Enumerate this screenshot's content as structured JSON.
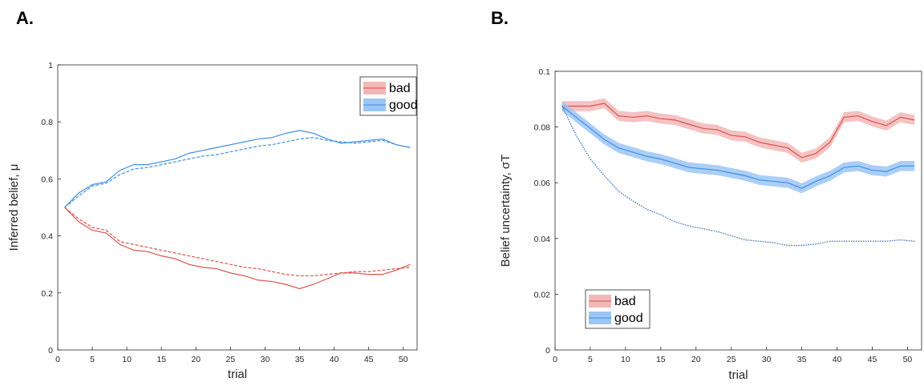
{
  "panels": [
    {
      "label": "A."
    },
    {
      "label": "B."
    }
  ],
  "colors": {
    "bad": "#d9534f",
    "good": "#3f8fe0",
    "bad_band": "#f2b7b7",
    "good_band": "#9cc6f5"
  },
  "chart_data": [
    {
      "type": "line",
      "title": "",
      "xlabel": "trial",
      "ylabel": "Inferred belief, μ",
      "xlim": [
        0,
        52
      ],
      "ylim": [
        0,
        1
      ],
      "xticks": [
        0,
        5,
        10,
        15,
        20,
        25,
        30,
        35,
        40,
        45,
        50
      ],
      "yticks": [
        0,
        0.2,
        0.4,
        0.6,
        0.8,
        1
      ],
      "ytick_labels": [
        "0",
        "0.2",
        "0.4",
        "0.6",
        "0.8",
        "1"
      ],
      "legend": {
        "position": "top-right",
        "entries": [
          "bad",
          "good"
        ]
      },
      "x": [
        1,
        3,
        5,
        7,
        9,
        11,
        13,
        15,
        17,
        19,
        21,
        23,
        25,
        27,
        29,
        31,
        33,
        35,
        37,
        39,
        41,
        43,
        45,
        47,
        49,
        51
      ],
      "series": [
        {
          "name": "good",
          "style": "solid",
          "values": [
            0.5,
            0.55,
            0.58,
            0.59,
            0.63,
            0.65,
            0.65,
            0.66,
            0.67,
            0.69,
            0.7,
            0.71,
            0.72,
            0.73,
            0.74,
            0.745,
            0.76,
            0.77,
            0.76,
            0.74,
            0.725,
            0.73,
            0.735,
            0.74,
            0.72,
            0.71
          ]
        },
        {
          "name": "good",
          "style": "dashed",
          "values": [
            0.5,
            0.54,
            0.575,
            0.585,
            0.615,
            0.635,
            0.64,
            0.65,
            0.66,
            0.67,
            0.68,
            0.685,
            0.695,
            0.705,
            0.715,
            0.72,
            0.73,
            0.74,
            0.745,
            0.735,
            0.73,
            0.725,
            0.73,
            0.735,
            0.72,
            0.71
          ]
        },
        {
          "name": "bad",
          "style": "solid",
          "values": [
            0.5,
            0.45,
            0.42,
            0.41,
            0.37,
            0.35,
            0.345,
            0.33,
            0.32,
            0.3,
            0.29,
            0.285,
            0.27,
            0.26,
            0.245,
            0.24,
            0.23,
            0.215,
            0.23,
            0.25,
            0.27,
            0.27,
            0.265,
            0.265,
            0.28,
            0.3
          ]
        },
        {
          "name": "bad",
          "style": "dashed",
          "values": [
            0.5,
            0.46,
            0.43,
            0.42,
            0.38,
            0.37,
            0.36,
            0.35,
            0.34,
            0.33,
            0.32,
            0.31,
            0.3,
            0.29,
            0.285,
            0.275,
            0.265,
            0.26,
            0.26,
            0.265,
            0.27,
            0.275,
            0.275,
            0.28,
            0.285,
            0.29
          ]
        }
      ]
    },
    {
      "type": "line",
      "title": "",
      "xlabel": "trial",
      "ylabel": "Belief uncertainty, σT",
      "xlim": [
        0,
        52
      ],
      "ylim": [
        0,
        0.1
      ],
      "xticks": [
        0,
        5,
        10,
        15,
        20,
        25,
        30,
        35,
        40,
        45,
        50
      ],
      "yticks": [
        0,
        0.02,
        0.04,
        0.06,
        0.08,
        0.1
      ],
      "ytick_labels": [
        "0",
        "0.02",
        "0.04",
        "0.06",
        "0.08",
        "0.1"
      ],
      "legend": {
        "position": "bottom-left",
        "entries": [
          "bad",
          "good"
        ]
      },
      "x": [
        1,
        3,
        5,
        7,
        9,
        11,
        13,
        15,
        17,
        19,
        21,
        23,
        25,
        27,
        29,
        31,
        33,
        35,
        37,
        39,
        41,
        43,
        45,
        47,
        49,
        51
      ],
      "series": [
        {
          "name": "bad",
          "style": "solid",
          "band": true,
          "values": [
            0.0875,
            0.0875,
            0.0875,
            0.0885,
            0.084,
            0.0835,
            0.084,
            0.083,
            0.0825,
            0.081,
            0.0795,
            0.079,
            0.077,
            0.0765,
            0.0745,
            0.0735,
            0.0725,
            0.069,
            0.0705,
            0.0745,
            0.0835,
            0.084,
            0.082,
            0.0805,
            0.0835,
            0.0825
          ]
        },
        {
          "name": "good",
          "style": "solid",
          "band": true,
          "values": [
            0.0875,
            0.0835,
            0.0795,
            0.0755,
            0.0725,
            0.071,
            0.0695,
            0.0685,
            0.067,
            0.0655,
            0.065,
            0.0645,
            0.0635,
            0.0625,
            0.061,
            0.0605,
            0.06,
            0.058,
            0.0605,
            0.0625,
            0.0655,
            0.066,
            0.0645,
            0.064,
            0.066,
            0.066
          ]
        },
        {
          "name": "bad",
          "style": "dotted",
          "values": [
            0.0875,
            0.077,
            0.0685,
            0.0625,
            0.057,
            0.0535,
            0.0505,
            0.0485,
            0.046,
            0.0445,
            0.0435,
            0.0425,
            0.041,
            0.0395,
            0.039,
            0.0385,
            0.0375,
            0.0375,
            0.038,
            0.039,
            0.039,
            0.039,
            0.039,
            0.039,
            0.0395,
            0.039
          ]
        },
        {
          "name": "good",
          "style": "dotted",
          "values": [
            0.0875,
            0.077,
            0.0685,
            0.0625,
            0.057,
            0.0535,
            0.0505,
            0.0485,
            0.046,
            0.0445,
            0.0435,
            0.0425,
            0.041,
            0.0395,
            0.039,
            0.0385,
            0.0375,
            0.0375,
            0.038,
            0.039,
            0.039,
            0.039,
            0.039,
            0.039,
            0.0395,
            0.039
          ]
        }
      ]
    }
  ]
}
